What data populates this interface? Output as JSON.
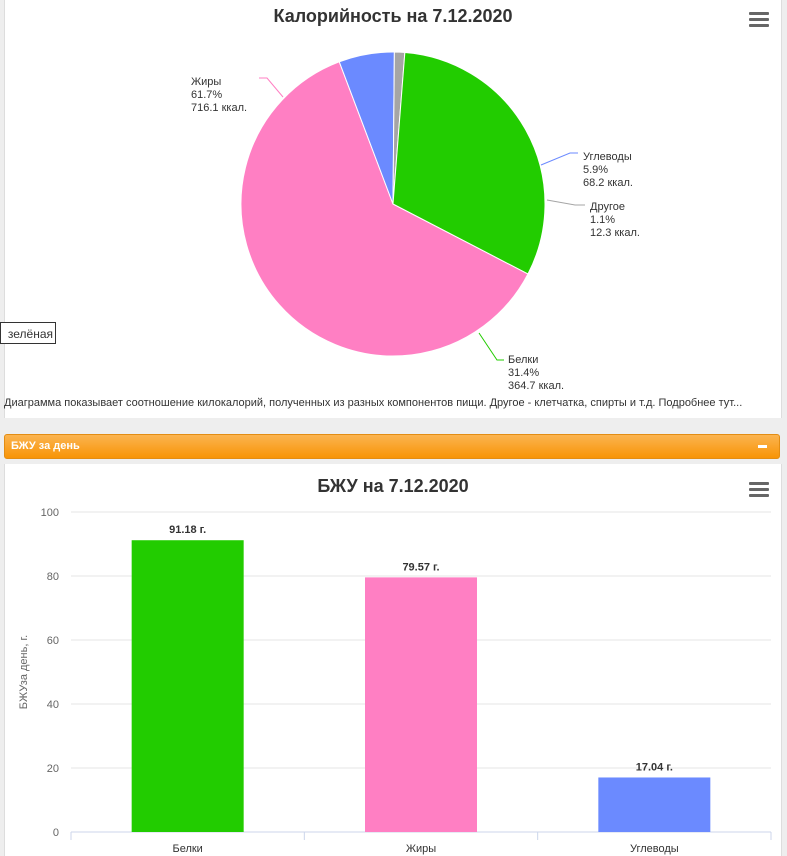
{
  "pie_title": "Калорийность на 7.12.2020",
  "bar_title": "БЖУ на 7.12.2020",
  "caption": "Диаграмма показывает соотношение килокалорий, полученных из разных компонентов пищи. Другое - клетчатка, спирты и т.д. Подробнее тут...",
  "tooltip_fragment": "зелёная",
  "section_label": "БЖУ за день",
  "chart_data": [
    {
      "type": "pie",
      "title": "Калорийность на 7.12.2020",
      "slices": [
        {
          "name": "Жиры",
          "percent": 61.7,
          "percent_label": "61.7%",
          "value_label": "716.1 ккал.",
          "value": 716.1,
          "color": "#ff7fc3"
        },
        {
          "name": "Углеводы",
          "percent": 5.9,
          "percent_label": "5.9%",
          "value_label": "68.2 ккал.",
          "value": 68.2,
          "color": "#6b8aff"
        },
        {
          "name": "Другое",
          "percent": 1.1,
          "percent_label": "1.1%",
          "value_label": "12.3 ккал.",
          "value": 12.3,
          "color": "#a5a5a5"
        },
        {
          "name": "Белки",
          "percent": 31.4,
          "percent_label": "31.4%",
          "value_label": "364.7 ккал.",
          "value": 364.7,
          "color": "#22cc00"
        }
      ]
    },
    {
      "type": "bar",
      "title": "БЖУ на 7.12.2020",
      "categories": [
        "Белки",
        "Жиры",
        "Углеводы"
      ],
      "values": [
        91.18,
        79.57,
        17.04
      ],
      "data_labels": [
        "91.18 г.",
        "79.57 г.",
        "17.04 г."
      ],
      "colors": [
        "#22cc00",
        "#ff7fc3",
        "#6b8aff"
      ],
      "ylabel": "БЖУза день, г.",
      "ylim": [
        0,
        100
      ],
      "yticks": [
        0,
        20,
        40,
        60,
        80,
        100
      ],
      "grid": true
    }
  ]
}
